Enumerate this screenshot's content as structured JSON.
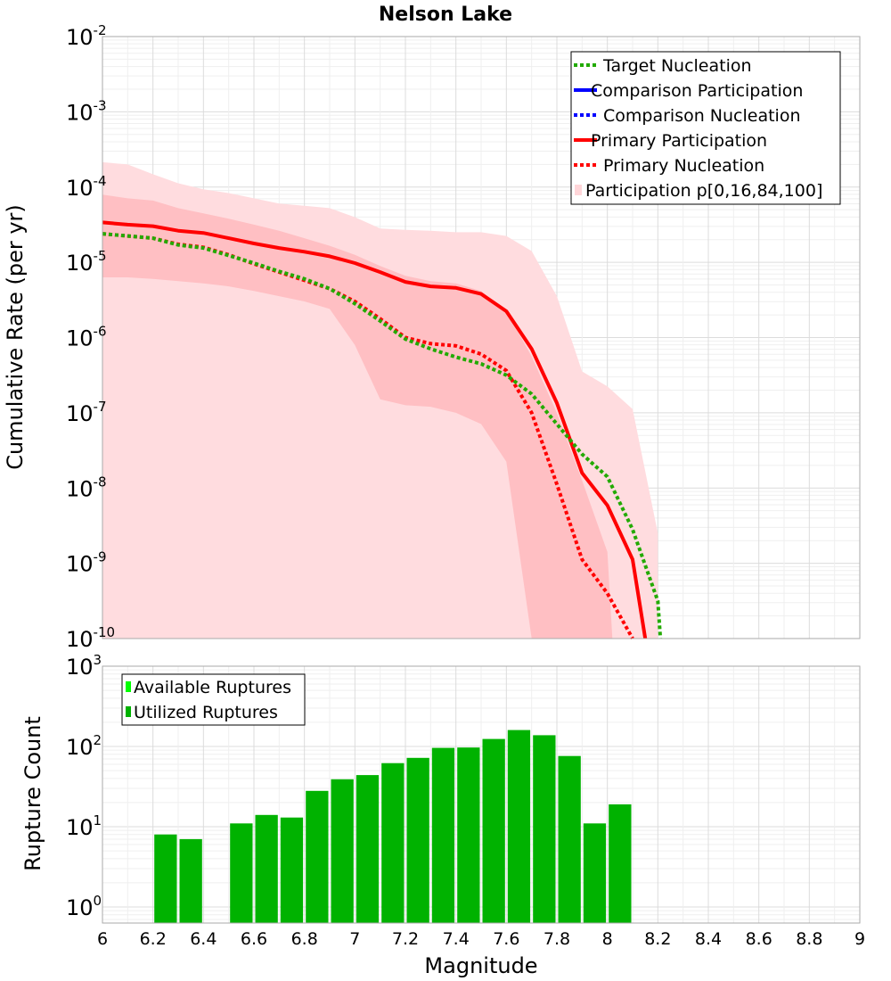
{
  "chart_data": [
    {
      "type": "line",
      "title": "Nelson Lake",
      "xlabel": "",
      "ylabel": "Cumulative Rate (per yr)",
      "yscale": "log",
      "xlim": [
        6,
        9
      ],
      "ylim_exp": [
        -10,
        -2
      ],
      "y_tick_exponents": [
        -2,
        -3,
        -4,
        -5,
        -6,
        -7,
        -8,
        -9,
        -10
      ],
      "legend": [
        {
          "label": "Target Nucleation",
          "color": "#22aa00",
          "style": "dotted"
        },
        {
          "label": "Comparison Participation",
          "color": "#0000ff",
          "style": "solid"
        },
        {
          "label": "Comparison Nucleation",
          "color": "#0000ff",
          "style": "dotted"
        },
        {
          "label": "Primary Participation",
          "color": "#ff0000",
          "style": "solid"
        },
        {
          "label": "Primary Nucleation",
          "color": "#ff0000",
          "style": "dotted"
        },
        {
          "label": "Participation p[0,16,84,100]",
          "color": "#ffd6d9",
          "style": "fill"
        }
      ],
      "bands": [
        {
          "name": "p0-p100",
          "color": "#ffdcdf",
          "x": [
            6.0,
            6.1,
            6.2,
            6.3,
            6.4,
            6.5,
            6.6,
            6.7,
            6.8,
            6.9,
            7.0,
            7.1,
            7.2,
            7.3,
            7.4,
            7.5,
            7.6,
            7.7,
            7.8,
            7.9,
            8.0,
            8.1,
            8.2
          ],
          "upper_exp": [
            -3.67,
            -3.7,
            -3.83,
            -3.95,
            -4.03,
            -4.08,
            -4.15,
            -4.22,
            -4.25,
            -4.28,
            -4.4,
            -4.55,
            -4.57,
            -4.58,
            -4.6,
            -4.6,
            -4.65,
            -4.85,
            -5.45,
            -6.45,
            -6.65,
            -6.95,
            -8.6
          ],
          "lower_exp": [
            -10,
            -10,
            -10,
            -10,
            -10,
            -10,
            -10,
            -10,
            -10,
            -10,
            -10,
            -10,
            -10,
            -10,
            -10,
            -10,
            -10,
            -10,
            -10,
            -10,
            -10,
            -10,
            -10
          ]
        },
        {
          "name": "p16-p84",
          "color": "#ffbfc3",
          "x": [
            6.0,
            6.1,
            6.2,
            6.3,
            6.4,
            6.5,
            6.6,
            6.7,
            6.8,
            6.9,
            7.0,
            7.1,
            7.2,
            7.3,
            7.4,
            7.5,
            7.6,
            7.7,
            7.8,
            7.9,
            8.0,
            8.02
          ],
          "upper_exp": [
            -4.1,
            -4.15,
            -4.18,
            -4.28,
            -4.35,
            -4.42,
            -4.5,
            -4.58,
            -4.68,
            -4.78,
            -4.9,
            -5.05,
            -5.18,
            -5.25,
            -5.28,
            -5.38,
            -5.65,
            -6.25,
            -7.0,
            -7.9,
            -8.85,
            -10
          ],
          "lower_exp": [
            -5.2,
            -5.2,
            -5.22,
            -5.25,
            -5.28,
            -5.32,
            -5.38,
            -5.45,
            -5.52,
            -5.62,
            -6.1,
            -6.82,
            -6.9,
            -6.92,
            -7.0,
            -7.15,
            -7.65,
            -10,
            -10,
            -10,
            -10,
            -10
          ]
        }
      ],
      "series": [
        {
          "name": "Primary Participation",
          "color": "#ff0000",
          "style": "solid",
          "x": [
            6.0,
            6.1,
            6.2,
            6.3,
            6.4,
            6.5,
            6.6,
            6.7,
            6.8,
            6.9,
            7.0,
            7.1,
            7.2,
            7.3,
            7.4,
            7.5,
            7.6,
            7.7,
            7.8,
            7.9,
            8.0,
            8.1,
            8.15
          ],
          "y_exp": [
            -4.47,
            -4.5,
            -4.52,
            -4.58,
            -4.61,
            -4.68,
            -4.75,
            -4.81,
            -4.86,
            -4.92,
            -5.01,
            -5.13,
            -5.26,
            -5.32,
            -5.34,
            -5.42,
            -5.65,
            -6.15,
            -6.87,
            -7.8,
            -8.23,
            -8.95,
            -10.0
          ]
        },
        {
          "name": "Primary Nucleation",
          "color": "#ff0000",
          "style": "dotted",
          "x": [
            6.0,
            6.1,
            6.2,
            6.3,
            6.4,
            6.5,
            6.6,
            6.7,
            6.8,
            6.9,
            7.0,
            7.1,
            7.2,
            7.3,
            7.4,
            7.5,
            7.6,
            7.7,
            7.8,
            7.9,
            8.0,
            8.1
          ],
          "y_exp": [
            -4.62,
            -4.65,
            -4.68,
            -4.76,
            -4.8,
            -4.9,
            -5.02,
            -5.13,
            -5.24,
            -5.35,
            -5.52,
            -5.75,
            -6.0,
            -6.08,
            -6.11,
            -6.22,
            -6.44,
            -7.0,
            -7.95,
            -8.95,
            -9.4,
            -10.0
          ]
        },
        {
          "name": "Target Nucleation",
          "color": "#22aa00",
          "style": "dotted",
          "x": [
            6.0,
            6.1,
            6.2,
            6.3,
            6.4,
            6.5,
            6.6,
            6.7,
            6.8,
            6.9,
            7.0,
            7.1,
            7.2,
            7.3,
            7.4,
            7.5,
            7.6,
            7.7,
            7.8,
            7.9,
            8.0,
            8.1,
            8.2,
            8.21
          ],
          "y_exp": [
            -4.62,
            -4.65,
            -4.68,
            -4.77,
            -4.81,
            -4.91,
            -5.01,
            -5.12,
            -5.22,
            -5.35,
            -5.55,
            -5.78,
            -6.02,
            -6.15,
            -6.26,
            -6.35,
            -6.5,
            -6.75,
            -7.15,
            -7.55,
            -7.85,
            -8.55,
            -9.5,
            -10.0
          ]
        }
      ]
    },
    {
      "type": "bar",
      "title": "",
      "xlabel": "Magnitude",
      "ylabel": "Rupture Count",
      "yscale": "log",
      "xlim": [
        6,
        9
      ],
      "ylim_exp": [
        -0.2,
        3
      ],
      "x_ticks": [
        "6",
        "6.2",
        "6.4",
        "6.6",
        "6.8",
        "7",
        "7.2",
        "7.4",
        "7.6",
        "7.8",
        "8",
        "8.2",
        "8.4",
        "8.6",
        "8.8",
        "9"
      ],
      "y_tick_exponents": [
        0,
        1,
        2,
        3
      ],
      "legend": [
        {
          "label": "Available Ruptures",
          "color": "#00ff00"
        },
        {
          "label": "Utilized Ruptures",
          "color": "#00b200"
        }
      ],
      "bar_color": "#00b200",
      "bin_width": 0.1,
      "bin_centers": [
        6.25,
        6.35,
        6.55,
        6.65,
        6.75,
        6.85,
        6.95,
        7.05,
        7.15,
        7.25,
        7.35,
        7.45,
        7.55,
        7.65,
        7.75,
        7.85,
        7.95,
        8.05
      ],
      "values": [
        8,
        7,
        11,
        14,
        13,
        28,
        39,
        44,
        62,
        72,
        96,
        97,
        124,
        160,
        138,
        76,
        11,
        19
      ]
    }
  ]
}
